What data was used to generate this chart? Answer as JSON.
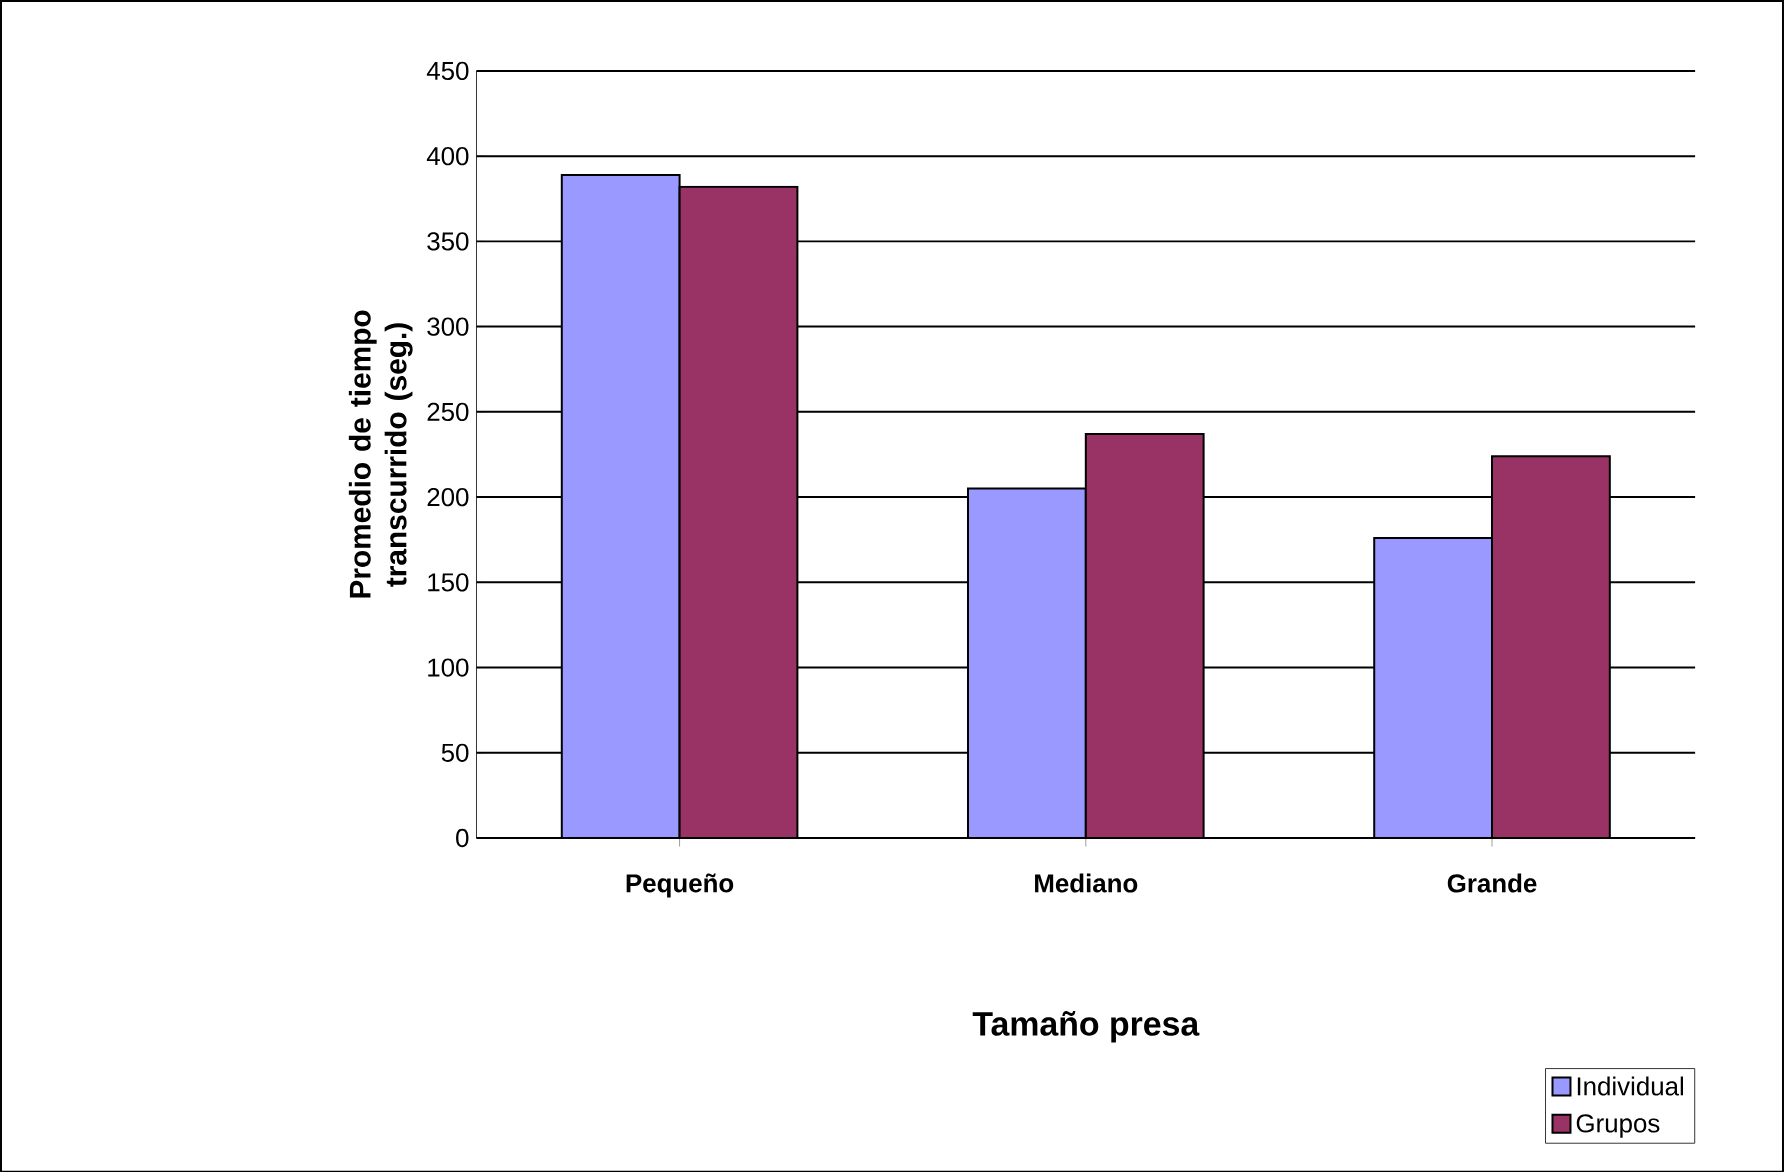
{
  "chart_data": {
    "type": "bar",
    "xlabel": "Tamaño presa",
    "ylabel": "Promedio de tiempo transcurrido (seg.)",
    "categories": [
      "Pequeño",
      "Mediano",
      "Grande"
    ],
    "series": [
      {
        "name": "Individual",
        "color": "#9999ff",
        "values": [
          389,
          205,
          176
        ]
      },
      {
        "name": "Grupos",
        "color": "#993366",
        "values": [
          382,
          237,
          224
        ]
      }
    ],
    "ylim": [
      0,
      450
    ],
    "yticks": [
      0,
      50,
      100,
      150,
      200,
      250,
      300,
      350,
      400,
      450
    ],
    "grid": "y",
    "legend": "bottom right"
  }
}
